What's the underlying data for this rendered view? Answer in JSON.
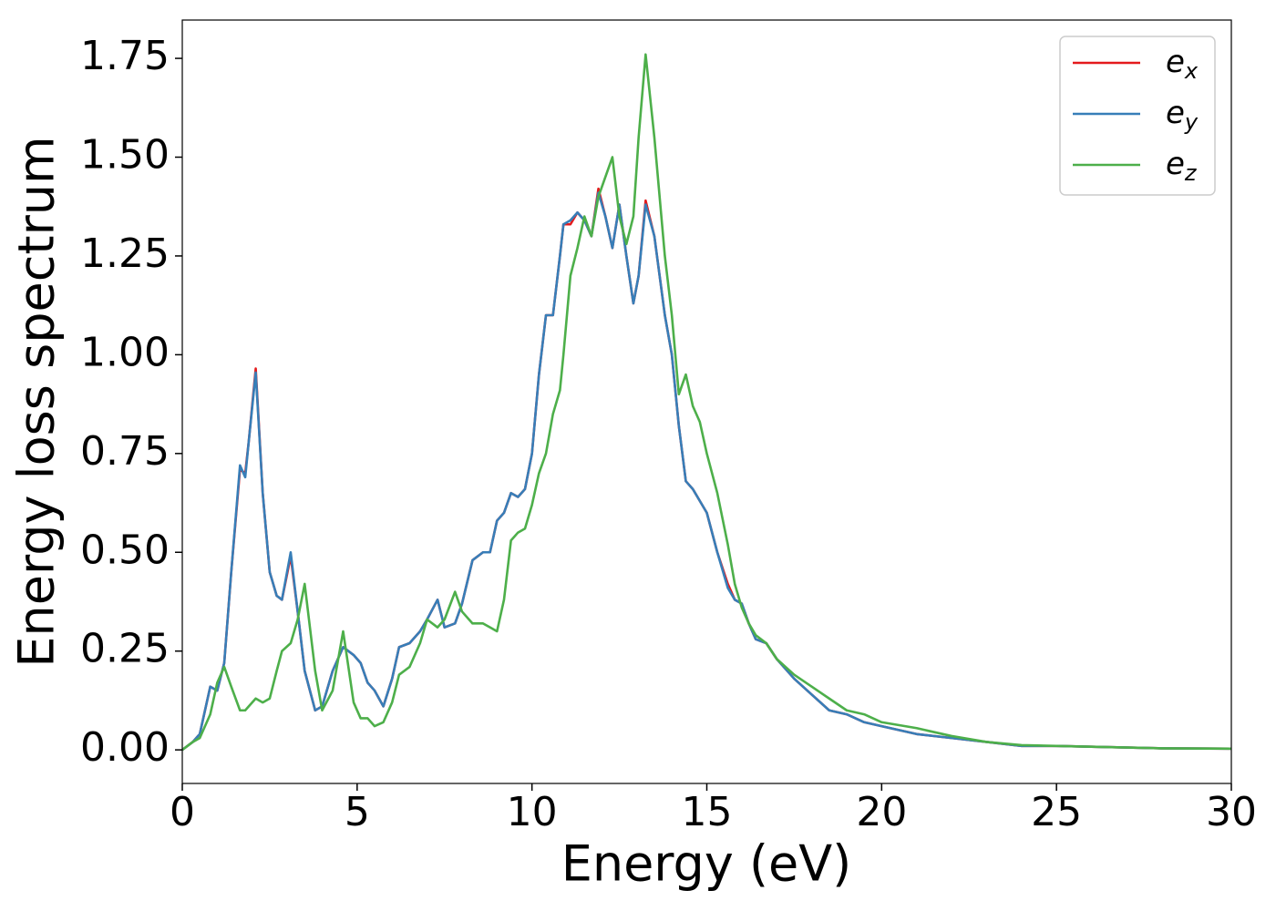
{
  "chart_data": {
    "type": "line",
    "xlabel": "Energy (eV)",
    "ylabel": "Energy loss spectrum",
    "xlim": [
      0,
      30
    ],
    "ylim": [
      -0.085,
      1.847
    ],
    "xticks": [
      0,
      5,
      10,
      15,
      20,
      25,
      30
    ],
    "yticks": [
      {
        "value": 0,
        "label": "0.00"
      },
      {
        "value": 0.25,
        "label": "0.25"
      },
      {
        "value": 0.5,
        "label": "0.50"
      },
      {
        "value": 0.75,
        "label": "0.75"
      },
      {
        "value": 1,
        "label": "1.00"
      },
      {
        "value": 1.25,
        "label": "1.25"
      },
      {
        "value": 1.5,
        "label": "1.50"
      },
      {
        "value": 1.75,
        "label": "1.75"
      }
    ],
    "grid": false,
    "legend": "upper right",
    "x": [
      0,
      0.3,
      0.5,
      0.8,
      1.0,
      1.2,
      1.4,
      1.65,
      1.8,
      1.9,
      2.1,
      2.3,
      2.5,
      2.7,
      2.85,
      3.1,
      3.3,
      3.5,
      3.8,
      4.0,
      4.3,
      4.6,
      4.9,
      5.1,
      5.3,
      5.5,
      5.75,
      6.0,
      6.2,
      6.5,
      6.8,
      7.0,
      7.3,
      7.5,
      7.8,
      8.0,
      8.3,
      8.6,
      8.8,
      9.0,
      9.2,
      9.4,
      9.6,
      9.8,
      10.0,
      10.2,
      10.4,
      10.6,
      10.8,
      10.9,
      11.1,
      11.3,
      11.5,
      11.7,
      11.9,
      12.1,
      12.3,
      12.5,
      12.7,
      12.9,
      13.05,
      13.25,
      13.5,
      13.8,
      14.0,
      14.2,
      14.4,
      14.6,
      14.8,
      15.0,
      15.3,
      15.6,
      15.8,
      16.0,
      16.2,
      16.4,
      16.7,
      17.0,
      17.5,
      18.0,
      18.5,
      19.0,
      19.5,
      20.0,
      21.0,
      22.0,
      23.0,
      24.0,
      25.0,
      26.0,
      28.0,
      30.0
    ],
    "series": [
      {
        "name": "ex",
        "color": "#e41a1c",
        "values": [
          0,
          0.02,
          0.04,
          0.16,
          0.15,
          0.22,
          0.45,
          0.71,
          0.7,
          0.78,
          0.965,
          0.65,
          0.45,
          0.39,
          0.38,
          0.49,
          0.35,
          0.2,
          0.1,
          0.11,
          0.2,
          0.26,
          0.24,
          0.22,
          0.17,
          0.15,
          0.11,
          0.18,
          0.26,
          0.27,
          0.3,
          0.33,
          0.38,
          0.31,
          0.32,
          0.37,
          0.48,
          0.5,
          0.5,
          0.58,
          0.6,
          0.65,
          0.64,
          0.66,
          0.75,
          0.95,
          1.1,
          1.1,
          1.25,
          1.33,
          1.33,
          1.36,
          1.34,
          1.3,
          1.42,
          1.35,
          1.27,
          1.38,
          1.25,
          1.13,
          1.2,
          1.39,
          1.3,
          1.1,
          1.0,
          0.82,
          0.68,
          0.66,
          0.63,
          0.6,
          0.5,
          0.42,
          0.38,
          0.37,
          0.32,
          0.28,
          0.27,
          0.23,
          0.18,
          0.14,
          0.1,
          0.09,
          0.07,
          0.06,
          0.04,
          0.03,
          0.02,
          0.01,
          0.01,
          0.008,
          0.004,
          0.003
        ]
      },
      {
        "name": "ey",
        "color": "#377eb8",
        "values": [
          0,
          0.02,
          0.04,
          0.16,
          0.15,
          0.22,
          0.45,
          0.72,
          0.69,
          0.78,
          0.955,
          0.65,
          0.45,
          0.39,
          0.38,
          0.5,
          0.35,
          0.2,
          0.1,
          0.11,
          0.2,
          0.26,
          0.24,
          0.22,
          0.17,
          0.15,
          0.11,
          0.18,
          0.26,
          0.27,
          0.3,
          0.33,
          0.38,
          0.31,
          0.32,
          0.37,
          0.48,
          0.5,
          0.5,
          0.58,
          0.6,
          0.65,
          0.64,
          0.66,
          0.75,
          0.95,
          1.1,
          1.1,
          1.25,
          1.33,
          1.34,
          1.36,
          1.34,
          1.3,
          1.41,
          1.35,
          1.27,
          1.38,
          1.25,
          1.13,
          1.2,
          1.38,
          1.3,
          1.1,
          1.0,
          0.82,
          0.68,
          0.66,
          0.63,
          0.6,
          0.5,
          0.41,
          0.38,
          0.37,
          0.32,
          0.28,
          0.27,
          0.23,
          0.18,
          0.14,
          0.1,
          0.09,
          0.07,
          0.06,
          0.04,
          0.03,
          0.02,
          0.01,
          0.01,
          0.008,
          0.004,
          0.003
        ]
      },
      {
        "name": "ez",
        "color": "#4daf4a",
        "values": [
          0,
          0.02,
          0.03,
          0.09,
          0.17,
          0.21,
          0.16,
          0.1,
          0.1,
          0.11,
          0.13,
          0.12,
          0.13,
          0.2,
          0.25,
          0.27,
          0.33,
          0.42,
          0.2,
          0.1,
          0.15,
          0.3,
          0.12,
          0.08,
          0.08,
          0.06,
          0.07,
          0.12,
          0.19,
          0.21,
          0.27,
          0.33,
          0.31,
          0.33,
          0.4,
          0.35,
          0.32,
          0.32,
          0.31,
          0.3,
          0.38,
          0.53,
          0.55,
          0.56,
          0.62,
          0.7,
          0.75,
          0.85,
          0.91,
          1.0,
          1.2,
          1.27,
          1.35,
          1.3,
          1.4,
          1.45,
          1.5,
          1.35,
          1.28,
          1.35,
          1.55,
          1.76,
          1.55,
          1.25,
          1.1,
          0.9,
          0.95,
          0.87,
          0.83,
          0.75,
          0.65,
          0.52,
          0.42,
          0.36,
          0.32,
          0.29,
          0.27,
          0.23,
          0.19,
          0.16,
          0.13,
          0.1,
          0.09,
          0.07,
          0.055,
          0.035,
          0.02,
          0.012,
          0.01,
          0.008,
          0.004,
          0.003
        ]
      }
    ]
  }
}
